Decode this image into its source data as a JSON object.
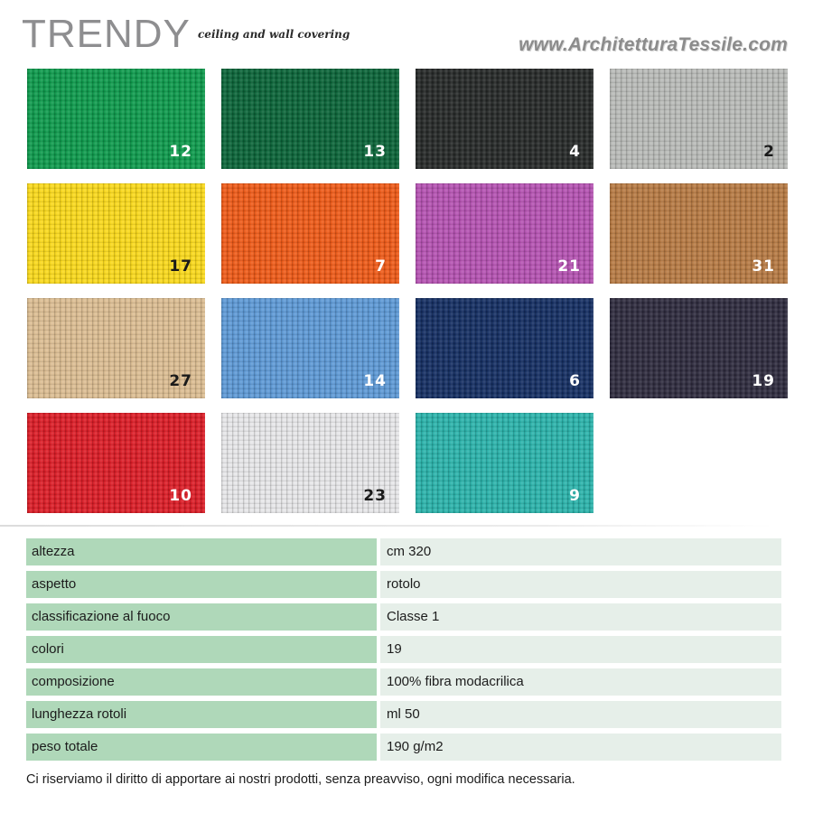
{
  "header": {
    "brand": "TRENDY",
    "tagline": "ceiling and wall covering",
    "website": "www.ArchitetturaTessile.com"
  },
  "swatches": [
    {
      "code": "12",
      "color": "#0d9a4c",
      "label_dark": false
    },
    {
      "code": "13",
      "color": "#0a6438",
      "label_dark": false
    },
    {
      "code": "4",
      "color": "#262928",
      "label_dark": false
    },
    {
      "code": "2",
      "color": "#b9bbb8",
      "label_dark": true
    },
    {
      "code": "17",
      "color": "#fad91a",
      "label_dark": true
    },
    {
      "code": "7",
      "color": "#ef5a17",
      "label_dark": false
    },
    {
      "code": "21",
      "color": "#b552b2",
      "label_dark": false
    },
    {
      "code": "31",
      "color": "#b77a43",
      "label_dark": false
    },
    {
      "code": "27",
      "color": "#dcbd92",
      "label_dark": true
    },
    {
      "code": "14",
      "color": "#5d99d6",
      "label_dark": false
    },
    {
      "code": "6",
      "color": "#142e62",
      "label_dark": false
    },
    {
      "code": "19",
      "color": "#2e2b3e",
      "label_dark": false
    },
    {
      "code": "10",
      "color": "#dc1c26",
      "label_dark": false
    },
    {
      "code": "23",
      "color": "#e7e7e9",
      "label_dark": true
    },
    {
      "code": "9",
      "color": "#2ab3ab",
      "label_dark": false
    }
  ],
  "specs": [
    {
      "label": "altezza",
      "value": "cm 320"
    },
    {
      "label": "aspetto",
      "value": "rotolo"
    },
    {
      "label": "classificazione al fuoco",
      "value": "Classe 1"
    },
    {
      "label": "colori",
      "value": "19"
    },
    {
      "label": "composizione",
      "value": "100% fibra modacrilica"
    },
    {
      "label": "lunghezza rotoli",
      "value": "ml 50"
    },
    {
      "label": "peso totale",
      "value": "190 g/m2"
    }
  ],
  "footer": {
    "disclaimer": "Ci riserviamo il diritto di apportare ai nostri prodotti, senza preavviso, ogni modifica necessaria."
  }
}
